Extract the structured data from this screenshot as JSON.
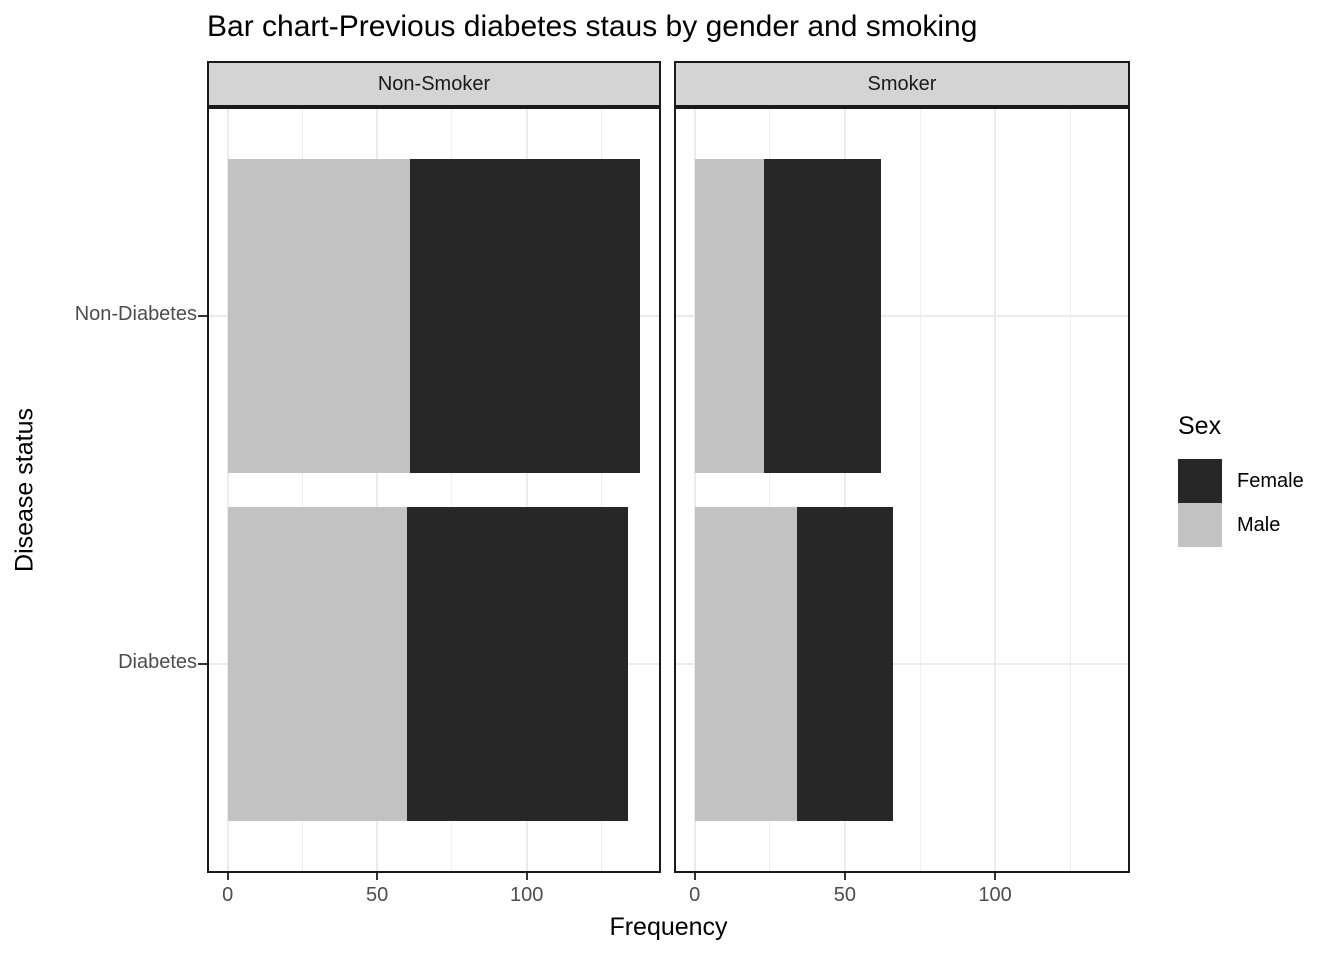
{
  "chart_data": {
    "type": "bar",
    "orientation": "horizontal",
    "stacked": true,
    "title": "Bar chart-Previous diabetes staus by gender and smoking",
    "xlabel": "Frequency",
    "ylabel": "Disease status",
    "categories": [
      "Non-Diabetes",
      "Diabetes"
    ],
    "facets": [
      {
        "label": "Non-Smoker",
        "series": [
          {
            "name": "Male",
            "values": [
              61,
              60
            ]
          },
          {
            "name": "Female",
            "values": [
              77,
              74
            ]
          }
        ]
      },
      {
        "label": "Smoker",
        "series": [
          {
            "name": "Male",
            "values": [
              23,
              34
            ]
          },
          {
            "name": "Female",
            "values": [
              39,
              32
            ]
          }
        ]
      }
    ],
    "x_ticks": [
      0,
      50,
      100
    ],
    "x_minor_gridlines": [
      25,
      75,
      125
    ],
    "xlim": [
      -6.9,
      144.9
    ],
    "grid": true,
    "legend_position": "right",
    "legend": {
      "title": "Sex",
      "entries": [
        {
          "label": "Female",
          "color": "#272727"
        },
        {
          "label": "Male",
          "color": "#c2c2c2"
        }
      ]
    }
  },
  "colors": {
    "female": "#272727",
    "male": "#c2c2c2",
    "strip_bg": "#d4d4d4",
    "strip_text": "#1a1a1a",
    "grid_major": "#ebebeb",
    "grid_minor": "#f0f0f0",
    "panel_border": "#1a1a1a",
    "axis_text": "#4d4d4d",
    "tick_mark": "#333333"
  }
}
